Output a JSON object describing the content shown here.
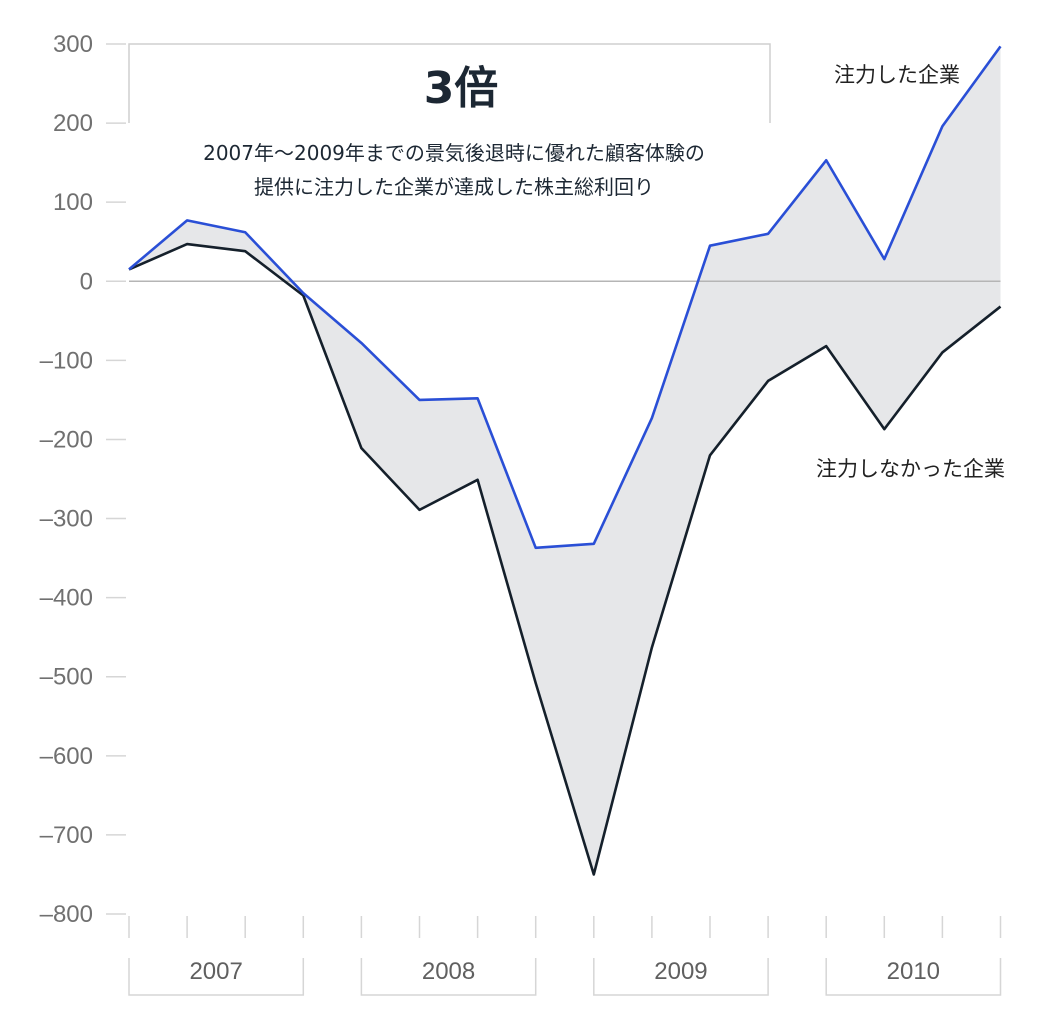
{
  "chart_data": {
    "type": "line",
    "x": [
      0,
      1,
      2,
      3,
      4,
      5,
      6,
      7,
      8,
      9,
      10,
      11,
      12,
      13,
      14,
      15
    ],
    "series": [
      {
        "name": "注力した企業",
        "values": [
          15,
          77,
          62,
          -15,
          -78,
          -150,
          -148,
          -337,
          -332,
          -173,
          45,
          60,
          153,
          28,
          196,
          297
        ],
        "color": "#2a4fd6"
      },
      {
        "name": "注力しなかった企業",
        "values": [
          15,
          47,
          38,
          -18,
          -211,
          -289,
          -251,
          -508,
          -750,
          -463,
          -220,
          -126,
          -82,
          -187,
          -90,
          -32
        ],
        "color": "#15202b"
      }
    ],
    "fill_between": {
      "color": "#e6e7e9"
    },
    "ylim": [
      -800,
      300
    ],
    "yticks": [
      300,
      200,
      100,
      0,
      -100,
      -200,
      -300,
      -400,
      -500,
      -600,
      -700,
      -800
    ],
    "ytick_labels": [
      "300",
      "200",
      "100",
      "0",
      "–100",
      "–200",
      "–300",
      "–400",
      "–500",
      "–600",
      "–700",
      "–800"
    ],
    "year_groups": [
      {
        "label": "2007",
        "start": 0,
        "end": 3
      },
      {
        "label": "2008",
        "start": 4,
        "end": 7
      },
      {
        "label": "2009",
        "start": 8,
        "end": 11
      },
      {
        "label": "2010",
        "start": 12,
        "end": 15
      }
    ],
    "annotation": {
      "title": "3倍",
      "line1": "2007年〜2009年までの景気後退時に優れた顧客体験の",
      "line2": "提供に注力した企業が達成した株主総利回り"
    },
    "grid": false,
    "zero_line": true
  }
}
